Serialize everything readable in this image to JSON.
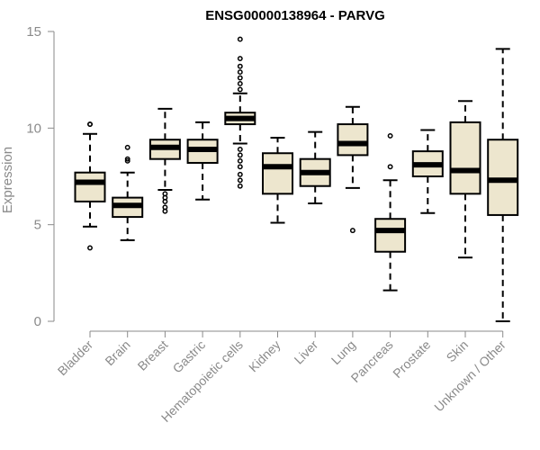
{
  "chart_data": {
    "type": "boxplot",
    "title": "ENSG00000138964 - PARVG",
    "ylabel": "Expression",
    "xlabel": "",
    "ylim": [
      0,
      15
    ],
    "yticks": [
      0,
      5,
      10,
      15
    ],
    "box_color": "#ede6ce",
    "categories": [
      "Bladder",
      "Brain",
      "Breast",
      "Gastric",
      "Hematopoietic cells",
      "Kidney",
      "Liver",
      "Lung",
      "Pancreas",
      "Prostate",
      "Skin",
      "Unknown / Other"
    ],
    "boxes": [
      {
        "whisker_low": 4.9,
        "q1": 6.2,
        "median": 7.2,
        "q3": 7.7,
        "whisker_high": 9.7,
        "outliers": [
          3.8,
          10.2,
          10.2
        ]
      },
      {
        "whisker_low": 4.2,
        "q1": 5.4,
        "median": 6.0,
        "q3": 6.4,
        "whisker_high": 7.7,
        "outliers": [
          8.3,
          8.4,
          9.0
        ]
      },
      {
        "whisker_low": 6.8,
        "q1": 8.4,
        "median": 9.0,
        "q3": 9.4,
        "whisker_high": 11.0,
        "outliers": [
          5.7,
          5.9,
          6.2,
          6.4,
          6.6
        ]
      },
      {
        "whisker_low": 6.3,
        "q1": 8.2,
        "median": 8.9,
        "q3": 9.4,
        "whisker_high": 10.3,
        "outliers": []
      },
      {
        "whisker_low": 9.2,
        "q1": 10.2,
        "median": 10.5,
        "q3": 10.8,
        "whisker_high": 11.8,
        "outliers": [
          7.0,
          7.3,
          7.6,
          8.0,
          8.3,
          8.6,
          8.9,
          12.0,
          12.3,
          12.6,
          12.9,
          13.2,
          13.6,
          14.6
        ]
      },
      {
        "whisker_low": 5.1,
        "q1": 6.6,
        "median": 8.0,
        "q3": 8.7,
        "whisker_high": 9.5,
        "outliers": []
      },
      {
        "whisker_low": 6.1,
        "q1": 7.0,
        "median": 7.7,
        "q3": 8.4,
        "whisker_high": 9.8,
        "outliers": []
      },
      {
        "whisker_low": 6.9,
        "q1": 8.6,
        "median": 9.2,
        "q3": 10.2,
        "whisker_high": 11.1,
        "outliers": [
          4.7
        ]
      },
      {
        "whisker_low": 1.6,
        "q1": 3.6,
        "median": 4.7,
        "q3": 5.3,
        "whisker_high": 7.3,
        "outliers": [
          8.0,
          9.6
        ]
      },
      {
        "whisker_low": 5.6,
        "q1": 7.5,
        "median": 8.1,
        "q3": 8.8,
        "whisker_high": 9.9,
        "outliers": []
      },
      {
        "whisker_low": 3.3,
        "q1": 6.6,
        "median": 7.8,
        "q3": 10.3,
        "whisker_high": 11.4,
        "outliers": []
      },
      {
        "whisker_low": 0.0,
        "q1": 5.5,
        "median": 7.3,
        "q3": 9.4,
        "whisker_high": 14.1,
        "outliers": []
      }
    ]
  }
}
